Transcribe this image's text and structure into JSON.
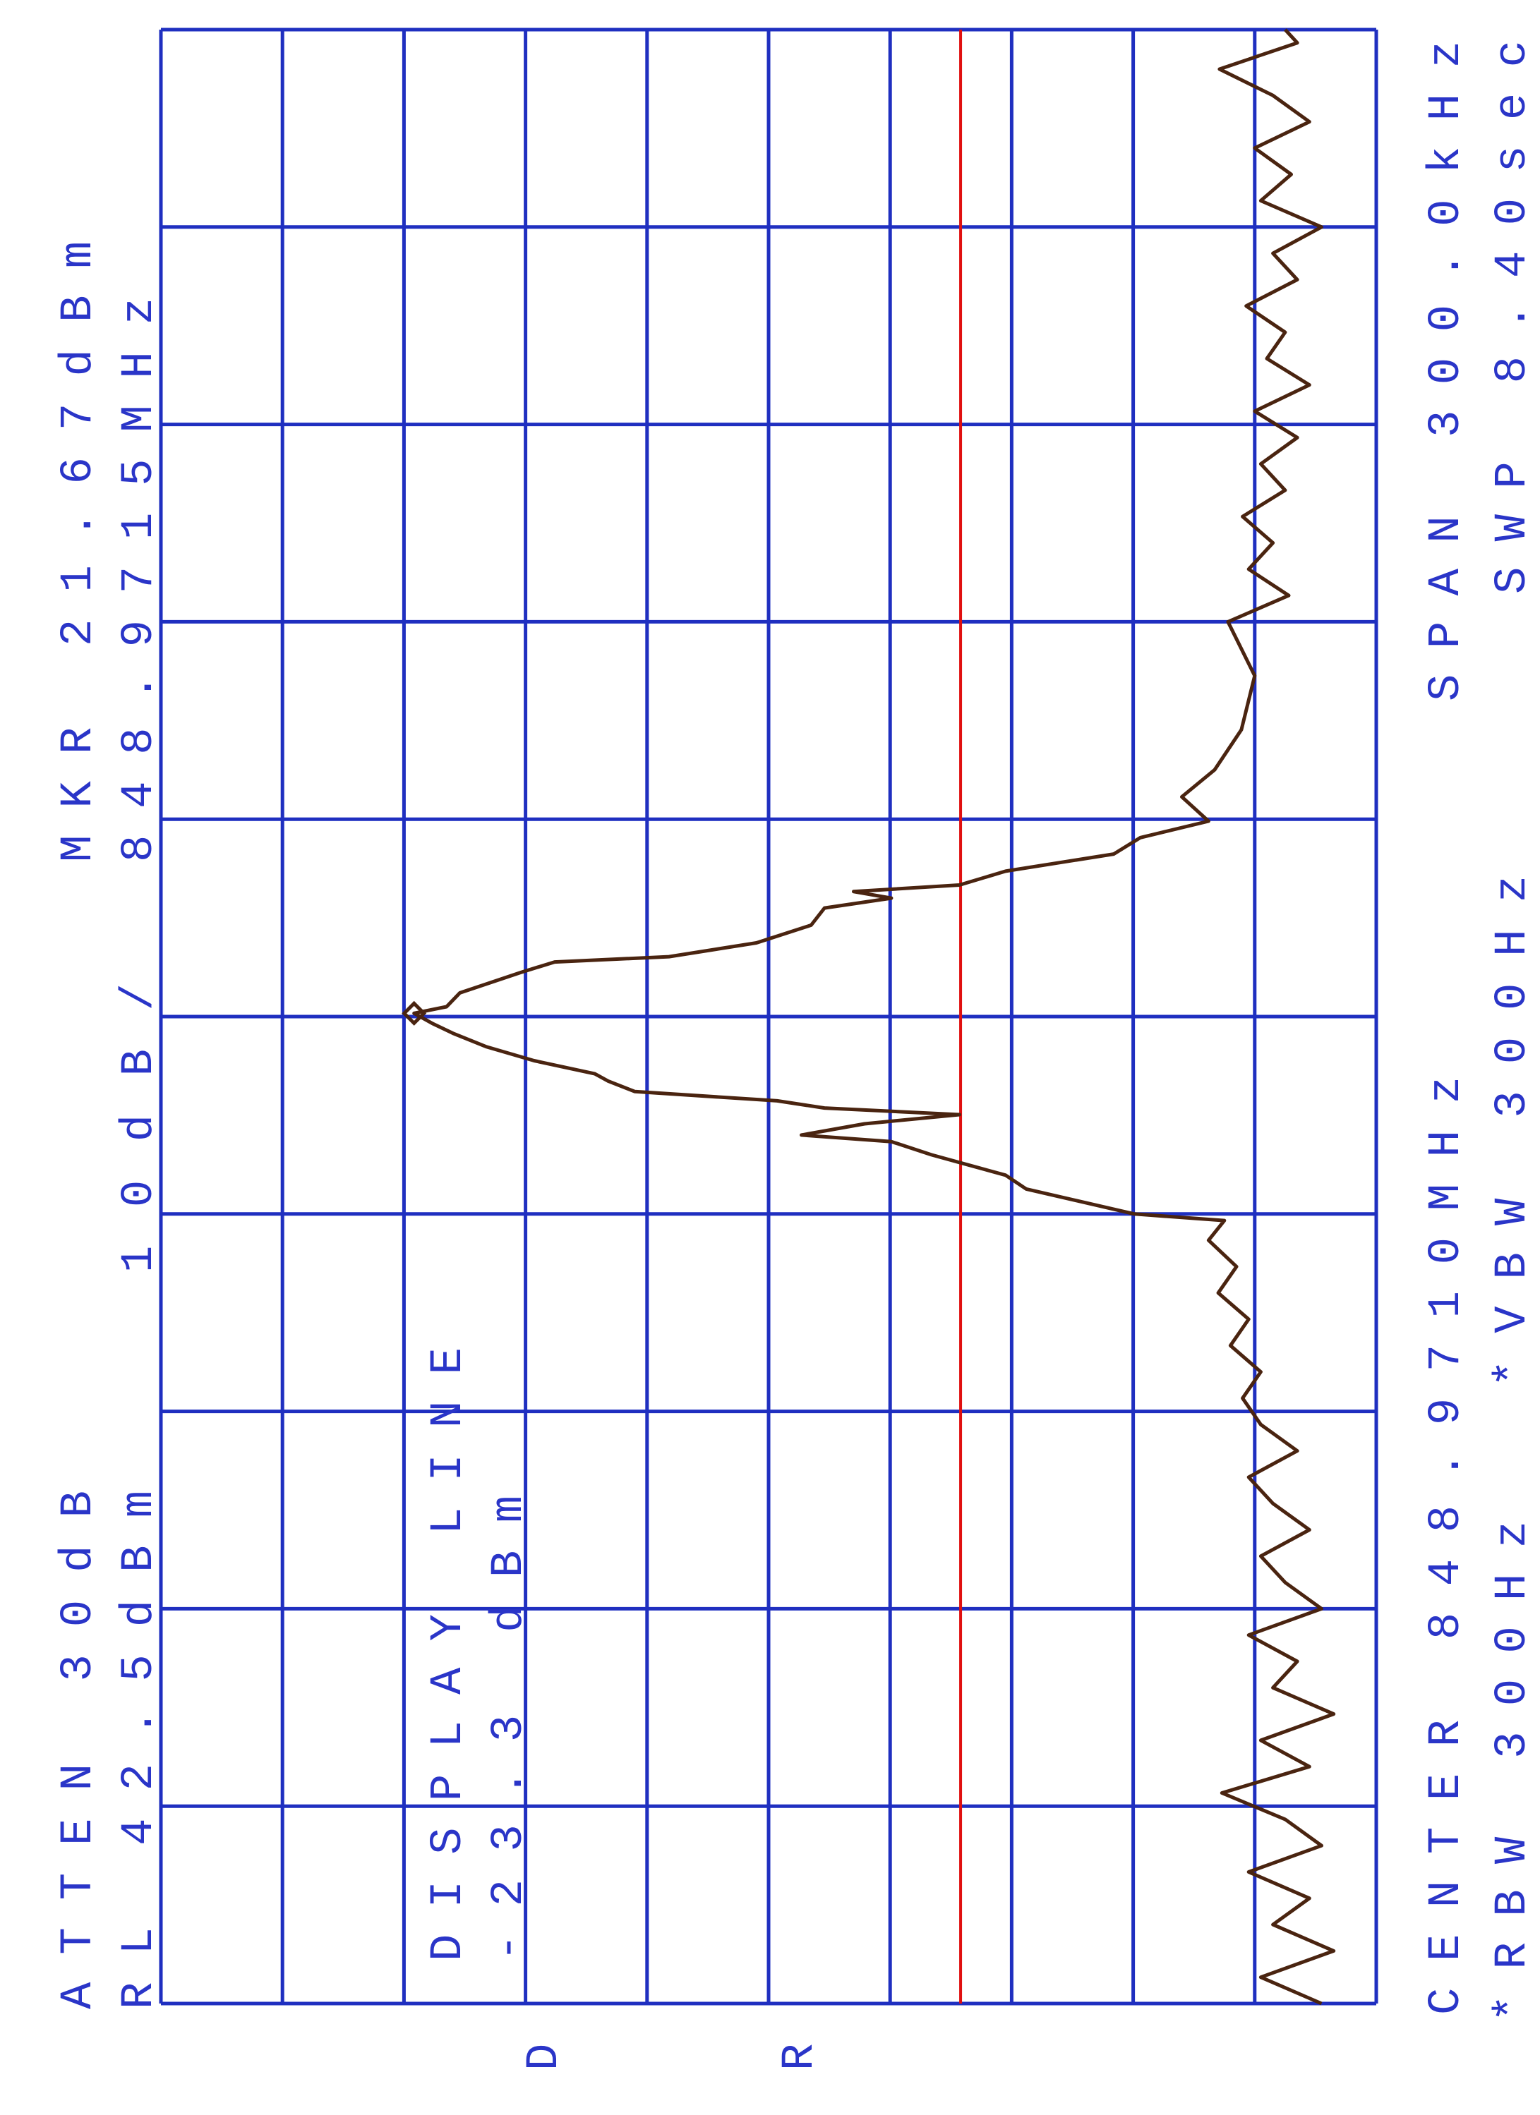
{
  "header": {
    "atten": "ATTEN 30dB",
    "ref_level": "RL 42.5dBm",
    "marker_amp": "MKR 21.67dBm",
    "marker_freq": "848.9715MHz",
    "scale": "10dB/",
    "display_line_title": "DISPLAY LINE",
    "display_line_value": "-23.3 dBm"
  },
  "footer": {
    "center": "CENTER 848.9710MHz",
    "span": "SPAN 300.0kHz",
    "rbw": "*RBW 300Hz",
    "vbw": "*VBW 300Hz",
    "sweep": "SWP 8.40sec"
  },
  "side_marks": {
    "d": "D",
    "r": "R"
  },
  "colors": {
    "grid": "#1f2fc0",
    "text": "#2a35c8",
    "trace": "#4a2410",
    "display_line": "#e01010"
  },
  "chart_data": {
    "type": "line",
    "orientation": "rotated 90° counter-clockwise (frequency runs bottom-to-top, amplitude decreases left-to-right)",
    "x_unit": "MHz",
    "y_unit": "dBm",
    "xlim": [
      848.821,
      849.121
    ],
    "ylim": [
      -57.5,
      42.5
    ],
    "reference_level": 42.5,
    "scale_db_per_div": 10,
    "grid": true,
    "grid_divisions": [
      10,
      10
    ],
    "display_line": -23.3,
    "marker": {
      "freq": 848.9715,
      "amp": 21.67
    },
    "series": [
      {
        "points": [
          [
            848.821,
            -53
          ],
          [
            848.825,
            -48
          ],
          [
            848.829,
            -54
          ],
          [
            848.833,
            -49
          ],
          [
            848.837,
            -52
          ],
          [
            848.841,
            -47
          ],
          [
            848.845,
            -53
          ],
          [
            848.849,
            -50
          ],
          [
            848.853,
            -44.8
          ],
          [
            848.857,
            -52
          ],
          [
            848.861,
            -48
          ],
          [
            848.865,
            -54
          ],
          [
            848.869,
            -49
          ],
          [
            848.873,
            -51
          ],
          [
            848.877,
            -47
          ],
          [
            848.881,
            -53
          ],
          [
            848.885,
            -50
          ],
          [
            848.889,
            -48
          ],
          [
            848.893,
            -52
          ],
          [
            848.897,
            -49
          ],
          [
            848.901,
            -47
          ],
          [
            848.905,
            -51
          ],
          [
            848.909,
            -48
          ],
          [
            848.913,
            -46.5
          ],
          [
            848.917,
            -48
          ],
          [
            848.921,
            -45.5
          ],
          [
            848.925,
            -47
          ],
          [
            848.929,
            -44.5
          ],
          [
            848.933,
            -46
          ],
          [
            848.937,
            -43.7
          ],
          [
            848.94,
            -45
          ],
          [
            848.941,
            -37.6
          ],
          [
            848.9448,
            -28.7
          ],
          [
            848.9469,
            -27.0
          ],
          [
            848.95,
            -20.9
          ],
          [
            848.952,
            -17.6
          ],
          [
            848.953,
            -10.2
          ],
          [
            848.9547,
            -15.4
          ],
          [
            848.9561,
            -23.2
          ],
          [
            848.9571,
            -12.1
          ],
          [
            848.9582,
            -8.2
          ],
          [
            848.9596,
            3.5
          ],
          [
            848.9612,
            5.7
          ],
          [
            848.9623,
            6.8
          ],
          [
            848.9643,
            11.8
          ],
          [
            848.9664,
            15.7
          ],
          [
            848.9684,
            18.4
          ],
          [
            848.9699,
            20.1
          ],
          [
            848.9715,
            21.67
          ],
          [
            848.9725,
            19.0
          ],
          [
            848.9746,
            17.9
          ],
          [
            848.9777,
            12.9
          ],
          [
            848.9793,
            10.1
          ],
          [
            848.9801,
            0.7
          ],
          [
            848.9822,
            -6.5
          ],
          [
            848.9849,
            -11.0
          ],
          [
            848.9875,
            -12.1
          ],
          [
            848.989,
            -17.6
          ],
          [
            848.99,
            -14.5
          ],
          [
            848.991,
            -23.2
          ],
          [
            848.9931,
            -27.0
          ],
          [
            848.9957,
            -35.9
          ],
          [
            848.9982,
            -38.1
          ],
          [
            849.0007,
            -43.7
          ],
          [
            849.0044,
            -41.5
          ],
          [
            849.0085,
            -44.2
          ],
          [
            849.0146,
            -46.4
          ],
          [
            849.0228,
            -47.5
          ],
          [
            849.031,
            -45.3
          ],
          [
            849.035,
            -50.3
          ],
          [
            849.039,
            -47
          ],
          [
            849.043,
            -49
          ],
          [
            849.047,
            -46.5
          ],
          [
            849.051,
            -50
          ],
          [
            849.055,
            -48
          ],
          [
            849.059,
            -51
          ],
          [
            849.063,
            -47.5
          ],
          [
            849.067,
            -52
          ],
          [
            849.071,
            -48.5
          ],
          [
            849.075,
            -50
          ],
          [
            849.079,
            -46.8
          ],
          [
            849.083,
            -51
          ],
          [
            849.087,
            -49
          ],
          [
            849.091,
            -53
          ],
          [
            849.095,
            -48
          ],
          [
            849.099,
            -50.5
          ],
          [
            849.103,
            -47.5
          ],
          [
            849.107,
            -52
          ],
          [
            849.111,
            -49
          ],
          [
            849.115,
            -44.6
          ],
          [
            849.119,
            -51
          ],
          [
            849.121,
            -50
          ]
        ]
      }
    ]
  }
}
